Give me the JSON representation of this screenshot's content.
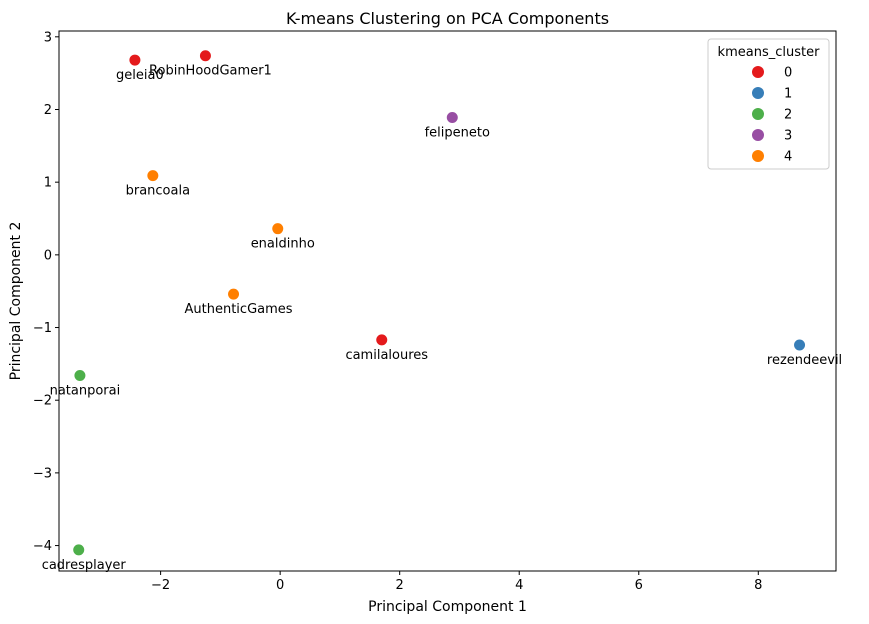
{
  "chart_data": {
    "type": "scatter",
    "title": "K-means Clustering on PCA Components",
    "xlabel": "Principal Component 1",
    "ylabel": "Principal Component 2",
    "xlim": [
      -3.7,
      9.3
    ],
    "ylim": [
      -4.35,
      3.08
    ],
    "xticks": [
      -2,
      0,
      2,
      4,
      6,
      8
    ],
    "yticks": [
      -4,
      -3,
      -2,
      -1,
      0,
      1,
      2,
      3
    ],
    "grid": false,
    "legend": {
      "title": "kmeans_cluster",
      "position": "top-right",
      "entries": [
        {
          "label": "0",
          "color": "#e41a1c"
        },
        {
          "label": "1",
          "color": "#377eb8"
        },
        {
          "label": "2",
          "color": "#4daf4a"
        },
        {
          "label": "3",
          "color": "#984ea3"
        },
        {
          "label": "4",
          "color": "#ff7f00"
        }
      ]
    },
    "points": [
      {
        "name": "geleia0",
        "x": -2.43,
        "y": 2.68,
        "cluster": 0
      },
      {
        "name": "RobinHoodGamer1",
        "x": -1.25,
        "y": 2.74,
        "cluster": 0
      },
      {
        "name": "felipeneto",
        "x": 2.88,
        "y": 1.89,
        "cluster": 3
      },
      {
        "name": "brancoala",
        "x": -2.13,
        "y": 1.09,
        "cluster": 4
      },
      {
        "name": "enaldinho",
        "x": -0.04,
        "y": 0.36,
        "cluster": 4
      },
      {
        "name": "AuthenticGames",
        "x": -0.78,
        "y": -0.54,
        "cluster": 4
      },
      {
        "name": "camilaloures",
        "x": 1.7,
        "y": -1.17,
        "cluster": 0
      },
      {
        "name": "rezendeevil",
        "x": 8.69,
        "y": -1.24,
        "cluster": 1
      },
      {
        "name": "natanporai",
        "x": -3.35,
        "y": -1.66,
        "cluster": 2
      },
      {
        "name": "cadresplayer",
        "x": -3.37,
        "y": -4.06,
        "cluster": 2
      }
    ]
  }
}
